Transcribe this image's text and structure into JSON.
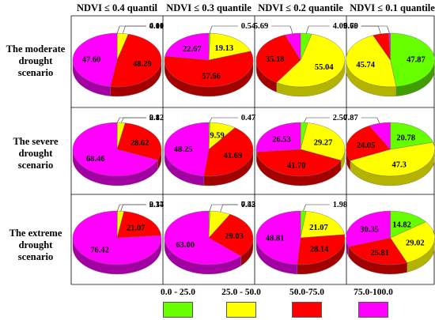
{
  "columns": [
    "NDVI ≤ 0.4 quantil",
    "NDVI ≤ 0.3 quantile",
    "NDVI ≤ 0.2 quantile",
    "NDVI ≤ 0.1 quantile"
  ],
  "rows": [
    {
      "line1": "The moderate",
      "line2": "drought scenario"
    },
    {
      "line1": "The severe",
      "line2": "drought scenario"
    },
    {
      "line1": "The extreme",
      "line2": "drought scenario"
    }
  ],
  "legend": [
    {
      "label": "0.0 - 25.0",
      "color": "#66ff00"
    },
    {
      "label": "25.0 - 50.0",
      "color": "#ffff00"
    },
    {
      "label": "50.0-75.0",
      "color": "#ff0000"
    },
    {
      "label": "75.0-100.0",
      "color": "#ff00ff"
    }
  ],
  "chart_data": {
    "type": "pie",
    "categories": [
      "0.0 - 25.0",
      "25.0 - 50.0",
      "50.0-75.0",
      "75.0-100.0"
    ],
    "pies": [
      {
        "row": 0,
        "col": 0,
        "values": [
          0.1,
          4.01,
          48.29,
          47.6
        ],
        "labels": [
          "0.10",
          "4.01",
          "48.29",
          "47.60"
        ]
      },
      {
        "row": 0,
        "col": 1,
        "values": [
          0.54,
          19.13,
          57.66,
          22.67
        ],
        "labels": [
          "0.54",
          "19.13",
          "57.66",
          "22.67"
        ]
      },
      {
        "row": 0,
        "col": 2,
        "values": [
          4.09,
          55.04,
          35.18,
          5.69
        ],
        "labels": [
          "4.09",
          "55.04",
          "35.18",
          "5.69"
        ]
      },
      {
        "row": 0,
        "col": 3,
        "values": [
          47.87,
          45.74,
          5.79,
          0.6
        ],
        "labels": [
          "47.87",
          "45.74",
          "5.79",
          "0.60"
        ]
      },
      {
        "row": 1,
        "col": 0,
        "values": [
          0.12,
          2.8,
          28.62,
          68.46
        ],
        "labels": [
          "0.12",
          "2.8",
          "28.62",
          "68.46"
        ]
      },
      {
        "row": 1,
        "col": 1,
        "values": [
          0.47,
          9.59,
          41.69,
          48.25
        ],
        "labels": [
          "0.47",
          "9.59",
          "41.69",
          "48.25"
        ]
      },
      {
        "row": 1,
        "col": 2,
        "values": [
          2.5,
          29.27,
          41.7,
          26.53
        ],
        "labels": [
          "2.50",
          "29.27",
          "41.70",
          "26.53"
        ]
      },
      {
        "row": 1,
        "col": 3,
        "values": [
          20.78,
          47.3,
          24.05,
          7.87
        ],
        "labels": [
          "20.78",
          "47.3",
          "24.05",
          "7.87"
        ]
      },
      {
        "row": 2,
        "col": 0,
        "values": [
          0.14,
          2.37,
          21.07,
          76.42
        ],
        "labels": [
          "0.14",
          "2.37",
          "21.07",
          "76.42"
        ]
      },
      {
        "row": 2,
        "col": 1,
        "values": [
          0.45,
          7.52,
          29.03,
          63.0
        ],
        "labels": [
          "0.45",
          "7.52",
          "29.03",
          "63.00"
        ]
      },
      {
        "row": 2,
        "col": 2,
        "values": [
          1.98,
          21.07,
          28.14,
          48.81
        ],
        "labels": [
          "1.98",
          "21.07",
          "28.14",
          "48.81"
        ]
      },
      {
        "row": 2,
        "col": 3,
        "values": [
          14.82,
          29.02,
          25.81,
          30.35
        ],
        "labels": [
          "14.82",
          "29.02",
          "25.81",
          "30.35"
        ]
      }
    ]
  }
}
